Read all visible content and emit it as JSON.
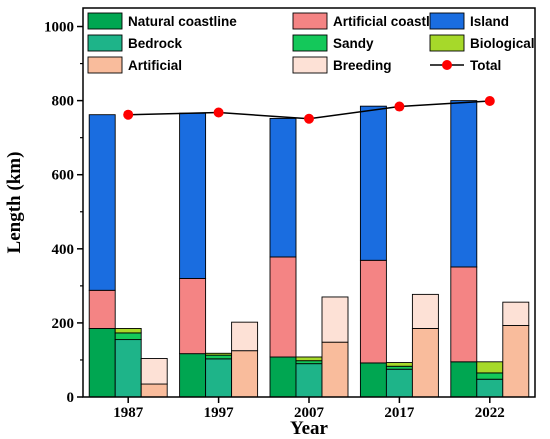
{
  "chart_data": {
    "type": "bar",
    "xlabel": "Year",
    "ylabel": "Length (km)",
    "ylim": [
      0,
      1050
    ],
    "yticks": [
      0,
      200,
      400,
      600,
      800,
      1000
    ],
    "categories": [
      "1987",
      "1997",
      "2007",
      "2017",
      "2022"
    ],
    "stacks": [
      {
        "name": "coastline",
        "segments": [
          {
            "name": "Natural coastline",
            "color": "#00a651",
            "values": [
              185,
              117,
              108,
              92,
              95
            ]
          },
          {
            "name": "Artificial coastline",
            "color": "#f48484",
            "values": [
              103,
              203,
              270,
              277,
              256
            ]
          },
          {
            "name": "Island",
            "color": "#1a6de0",
            "values": [
              474,
              446,
              374,
              416,
              449
            ]
          }
        ]
      },
      {
        "name": "natural-detail",
        "segments": [
          {
            "name": "Bedrock",
            "color": "#1eb489",
            "values": [
              155,
              103,
              90,
              75,
              48
            ]
          },
          {
            "name": "Sandy",
            "color": "#14c85a",
            "values": [
              18,
              10,
              8,
              8,
              17
            ]
          },
          {
            "name": "Biological",
            "color": "#a6d92a",
            "values": [
              12,
              5,
              10,
              10,
              30
            ]
          }
        ]
      },
      {
        "name": "artificial-detail",
        "segments": [
          {
            "name": "Artificial",
            "color": "#f9bc9c",
            "values": [
              35,
              125,
              148,
              185,
              193
            ]
          },
          {
            "name": "Breeding",
            "color": "#fde1d6",
            "values": [
              69,
              77,
              122,
              92,
              63
            ]
          }
        ]
      }
    ],
    "series": [
      {
        "name": "Total",
        "type": "line",
        "color": "#ff0000",
        "line_color": "#000000",
        "values": [
          762,
          768,
          751,
          784,
          799
        ]
      }
    ],
    "legend": {
      "placement": "top",
      "items": [
        {
          "label": "Natural coastline",
          "color": "#00a651",
          "kind": "box"
        },
        {
          "label": "Artificial coastline",
          "color": "#f48484",
          "kind": "box"
        },
        {
          "label": "Island",
          "color": "#1a6de0",
          "kind": "box"
        },
        {
          "label": "Bedrock",
          "color": "#1eb489",
          "kind": "box"
        },
        {
          "label": "Sandy",
          "color": "#14c85a",
          "kind": "box"
        },
        {
          "label": "Biological",
          "color": "#a6d92a",
          "kind": "box"
        },
        {
          "label": "Artificial",
          "color": "#f9bc9c",
          "kind": "box"
        },
        {
          "label": "Breeding",
          "color": "#fde1d6",
          "kind": "box"
        },
        {
          "label": "Total",
          "color": "#ff0000",
          "kind": "line-marker"
        }
      ]
    },
    "grid": false
  }
}
